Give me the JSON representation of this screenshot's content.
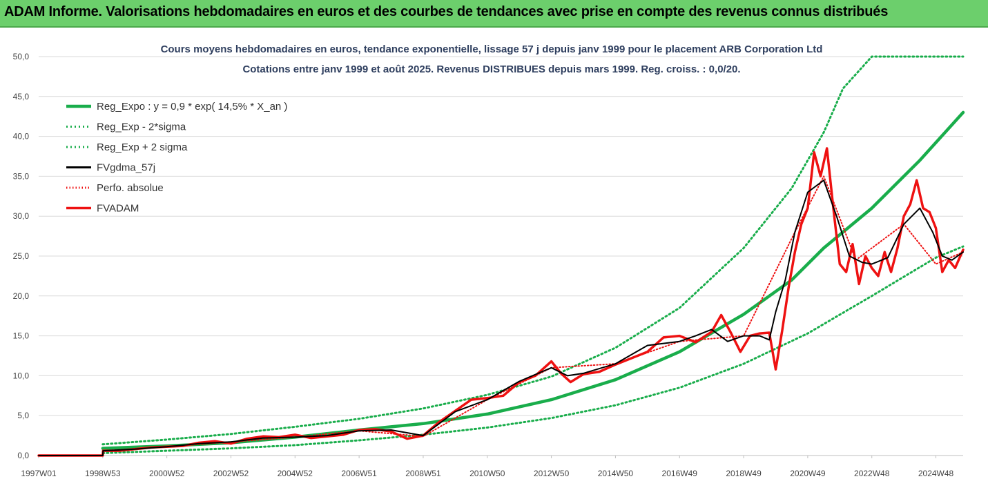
{
  "header": {
    "banner_text": "ADAM Informe. Valorisations hebdomadaires en euros et des courbes de tendances avec prise en compte des revenus connus distribués"
  },
  "colors": {
    "banner_bg": "#6ccf6c",
    "reg_green": "#19ad4b",
    "black": "#000000",
    "red": "#ee1111",
    "grid": "#d9d9d9"
  },
  "chart_data": {
    "type": "line",
    "title_lines": [
      "Cours moyens hebdomadaires en euros, tendance exponentielle, lissage 57 j depuis janv 1999 pour le placement ARB Corporation Ltd",
      "Cotations entre janv 1999 et août 2025.  Revenus DISTRIBUES depuis mars 1999. Reg. croiss. : 0,0/20."
    ],
    "xlabel": "",
    "ylabel": "",
    "ylim": [
      0,
      50
    ],
    "y_ticks": [
      "0,0",
      "5,0",
      "10,0",
      "15,0",
      "20,0",
      "25,0",
      "30,0",
      "35,0",
      "40,0",
      "45,0",
      "50,0"
    ],
    "x_ticks": [
      "1997W01",
      "1998W53",
      "2000W52",
      "2002W52",
      "2004W52",
      "2006W51",
      "2008W51",
      "2010W50",
      "2012W50",
      "2014W50",
      "2016W49",
      "2018W49",
      "2020W49",
      "2022W48",
      "2024W48"
    ],
    "x_tick_years": [
      1997.0,
      1999.0,
      2001.0,
      2003.0,
      2005.0,
      2007.0,
      2009.0,
      2011.0,
      2013.0,
      2015.0,
      2017.0,
      2019.0,
      2021.0,
      2023.0,
      2025.0
    ],
    "xlim": [
      1997.0,
      2025.85
    ],
    "grid": "horizontal",
    "legend_position": "top-left",
    "legend": [
      "Reg_Expo : y = 0,9 * exp( 14,5% *  X_an )",
      "Reg_Exp - 2*sigma",
      "Reg_Exp + 2 sigma",
      "FVgdma_57j",
      "Perfo. absolue",
      "FVADAM"
    ],
    "series": [
      {
        "name": "Reg_Expo : y = 0,9 * exp( 14,5% *  X_an )",
        "style": "solid-green-thick",
        "x": [
          1999.0,
          2001.0,
          2003.0,
          2005.0,
          2007.0,
          2009.0,
          2011.0,
          2013.0,
          2015.0,
          2017.0,
          2019.0,
          2020.5,
          2021.5,
          2023.0,
          2024.5,
          2025.85
        ],
        "y": [
          0.9,
          1.2,
          1.6,
          2.3,
          3.2,
          4.0,
          5.2,
          7.0,
          9.5,
          13.0,
          17.7,
          22.0,
          26.0,
          31.0,
          37.0,
          43.0
        ]
      },
      {
        "name": "Reg_Exp - 2*sigma",
        "style": "dotted-green",
        "x": [
          1999.0,
          2001.0,
          2003.0,
          2005.0,
          2007.0,
          2009.0,
          2011.0,
          2013.0,
          2015.0,
          2017.0,
          2019.0,
          2021.0,
          2023.0,
          2025.0,
          2025.85
        ],
        "y": [
          0.3,
          0.6,
          0.9,
          1.3,
          1.9,
          2.6,
          3.5,
          4.7,
          6.3,
          8.5,
          11.5,
          15.3,
          20.0,
          24.8,
          26.2
        ]
      },
      {
        "name": "Reg_Exp + 2 sigma",
        "style": "dotted-green",
        "x": [
          1999.0,
          2001.0,
          2003.0,
          2005.0,
          2007.0,
          2009.0,
          2011.0,
          2013.0,
          2015.0,
          2017.0,
          2019.0,
          2020.5,
          2021.5,
          2022.1,
          2023.0,
          2025.85
        ],
        "y": [
          1.4,
          2.0,
          2.7,
          3.6,
          4.6,
          5.9,
          7.6,
          9.9,
          13.5,
          18.5,
          26.0,
          33.5,
          40.5,
          46.0,
          50.0,
          50.0
        ]
      },
      {
        "name": "FVgdma_57j",
        "style": "solid-black",
        "x": [
          1997.0,
          1999.0,
          1999.01,
          2000.0,
          2001.0,
          2002.0,
          2003.0,
          2004.0,
          2005.0,
          2006.0,
          2007.0,
          2008.0,
          2009.0,
          2010.0,
          2011.0,
          2012.0,
          2013.0,
          2013.5,
          2014.0,
          2015.0,
          2016.0,
          2017.0,
          2017.5,
          2018.0,
          2018.5,
          2019.0,
          2019.5,
          2019.8,
          2020.0,
          2020.3,
          2020.6,
          2021.0,
          2021.5,
          2021.9,
          2022.3,
          2022.7,
          2023.0,
          2023.5,
          2024.0,
          2024.5,
          2024.9,
          2025.2,
          2025.5,
          2025.85
        ],
        "y": [
          0.0,
          0.0,
          0.6,
          0.8,
          1.1,
          1.5,
          1.7,
          2.2,
          2.3,
          2.5,
          3.1,
          3.2,
          2.5,
          5.5,
          7.0,
          9.3,
          11.0,
          10.0,
          10.3,
          11.5,
          13.8,
          14.3,
          15.0,
          15.8,
          14.3,
          15.0,
          15.0,
          14.5,
          18.0,
          22.0,
          28.0,
          33.0,
          34.5,
          30.0,
          25.0,
          24.2,
          24.0,
          24.8,
          29.0,
          31.0,
          28.0,
          25.0,
          24.5,
          25.5
        ]
      },
      {
        "name": "Perfo. absolue",
        "style": "dotted-red",
        "x": [
          1997.0,
          1999.0,
          1999.01,
          2001.0,
          2003.0,
          2005.0,
          2007.0,
          2009.0,
          2011.0,
          2013.0,
          2015.0,
          2017.0,
          2019.0,
          2020.6,
          2021.5,
          2022.5,
          2024.0,
          2025.0,
          2025.85
        ],
        "y": [
          0.0,
          0.0,
          0.6,
          1.1,
          1.7,
          2.3,
          3.1,
          2.4,
          7.0,
          11.0,
          11.5,
          14.3,
          15.0,
          28.0,
          35.0,
          24.5,
          29.0,
          24.0,
          25.5
        ]
      },
      {
        "name": "FVADAM",
        "style": "solid-red-thick",
        "x": [
          1997.0,
          1999.0,
          1999.01,
          1999.5,
          2000.0,
          2000.5,
          2001.0,
          2001.5,
          2002.0,
          2002.5,
          2003.0,
          2003.5,
          2004.0,
          2004.5,
          2005.0,
          2005.5,
          2006.0,
          2006.5,
          2007.0,
          2007.5,
          2008.0,
          2008.5,
          2009.0,
          2009.5,
          2010.0,
          2010.5,
          2011.0,
          2011.5,
          2012.0,
          2012.5,
          2013.0,
          2013.3,
          2013.6,
          2014.0,
          2014.5,
          2015.0,
          2015.5,
          2016.0,
          2016.5,
          2017.0,
          2017.5,
          2018.0,
          2018.3,
          2018.6,
          2018.9,
          2019.2,
          2019.5,
          2019.8,
          2020.0,
          2020.2,
          2020.4,
          2020.6,
          2020.8,
          2021.0,
          2021.2,
          2021.4,
          2021.6,
          2021.8,
          2022.0,
          2022.2,
          2022.4,
          2022.6,
          2022.8,
          2023.0,
          2023.2,
          2023.4,
          2023.6,
          2023.8,
          2024.0,
          2024.2,
          2024.4,
          2024.6,
          2024.8,
          2025.0,
          2025.2,
          2025.4,
          2025.6,
          2025.85
        ],
        "y": [
          0.0,
          0.0,
          0.6,
          0.6,
          0.8,
          1.0,
          1.1,
          1.2,
          1.6,
          1.8,
          1.5,
          2.1,
          2.4,
          2.3,
          2.6,
          2.2,
          2.4,
          2.6,
          3.2,
          3.3,
          3.0,
          2.1,
          2.5,
          4.2,
          5.6,
          7.0,
          7.2,
          7.5,
          9.2,
          10.0,
          11.8,
          10.3,
          9.2,
          10.2,
          10.5,
          11.4,
          12.2,
          13.0,
          14.8,
          15.0,
          14.2,
          15.5,
          17.6,
          15.4,
          13.0,
          15.0,
          15.3,
          15.4,
          10.8,
          15.6,
          21.0,
          25.5,
          29.0,
          31.0,
          38.0,
          35.0,
          38.5,
          31.0,
          24.0,
          23.0,
          26.5,
          21.5,
          25.0,
          23.5,
          22.5,
          25.5,
          23.0,
          26.0,
          30.0,
          31.5,
          34.5,
          31.0,
          30.5,
          28.5,
          23.0,
          24.5,
          23.5,
          25.8
        ]
      }
    ]
  }
}
